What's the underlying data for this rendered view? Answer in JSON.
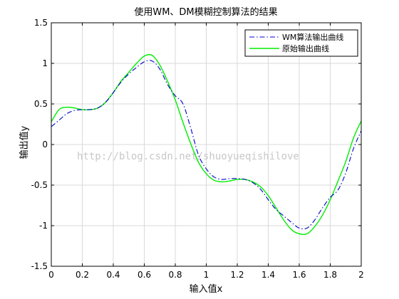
{
  "chart_data": {
    "type": "line",
    "title": "使用WM、DM模糊控制算法的结果",
    "xlabel": "输入值x",
    "ylabel": "输出值y",
    "xlim": [
      0,
      2
    ],
    "ylim": [
      -1.5,
      1.5
    ],
    "xticks": [
      "0",
      "0.2",
      "0.4",
      "0.6",
      "0.8",
      "1",
      "1.2",
      "1.4",
      "1.6",
      "1.8",
      "2"
    ],
    "yticks": [
      "1.5",
      "1",
      "0.5",
      "0",
      "-0.5",
      "-1",
      "-1.5"
    ],
    "grid": true,
    "legend_position": "top-right",
    "watermark": "http://blog.csdn.net/shuoyueqishilove",
    "x": [
      0,
      0.05,
      0.1,
      0.15,
      0.2,
      0.25,
      0.3,
      0.35,
      0.4,
      0.45,
      0.5,
      0.55,
      0.6,
      0.65,
      0.7,
      0.75,
      0.8,
      0.85,
      0.9,
      0.95,
      1.0,
      1.05,
      1.1,
      1.15,
      1.2,
      1.25,
      1.3,
      1.35,
      1.4,
      1.45,
      1.5,
      1.55,
      1.6,
      1.65,
      1.7,
      1.75,
      1.8,
      1.85,
      1.9,
      1.95,
      2.0
    ],
    "series": [
      {
        "name": "WM算法输出曲线",
        "color": "#0000cc",
        "style": "dashdot",
        "values": [
          0.22,
          0.3,
          0.38,
          0.42,
          0.43,
          0.43,
          0.45,
          0.52,
          0.64,
          0.77,
          0.87,
          0.95,
          1.02,
          1.03,
          0.93,
          0.74,
          0.6,
          0.5,
          0.2,
          -0.13,
          -0.3,
          -0.4,
          -0.43,
          -0.42,
          -0.42,
          -0.43,
          -0.47,
          -0.55,
          -0.68,
          -0.8,
          -0.88,
          -0.96,
          -1.03,
          -1.03,
          -0.93,
          -0.78,
          -0.65,
          -0.56,
          -0.35,
          -0.05,
          0.17
        ]
      },
      {
        "name": "原始输出曲线",
        "color": "#00ee00",
        "style": "solid",
        "values": [
          0.28,
          0.43,
          0.46,
          0.45,
          0.43,
          0.43,
          0.45,
          0.52,
          0.64,
          0.78,
          0.89,
          1.0,
          1.09,
          1.1,
          0.98,
          0.78,
          0.55,
          0.27,
          0.01,
          -0.22,
          -0.36,
          -0.44,
          -0.46,
          -0.45,
          -0.43,
          -0.43,
          -0.46,
          -0.52,
          -0.63,
          -0.78,
          -0.93,
          -1.05,
          -1.1,
          -1.1,
          -1.01,
          -0.87,
          -0.68,
          -0.45,
          -0.21,
          0.08,
          0.29
        ]
      }
    ]
  }
}
